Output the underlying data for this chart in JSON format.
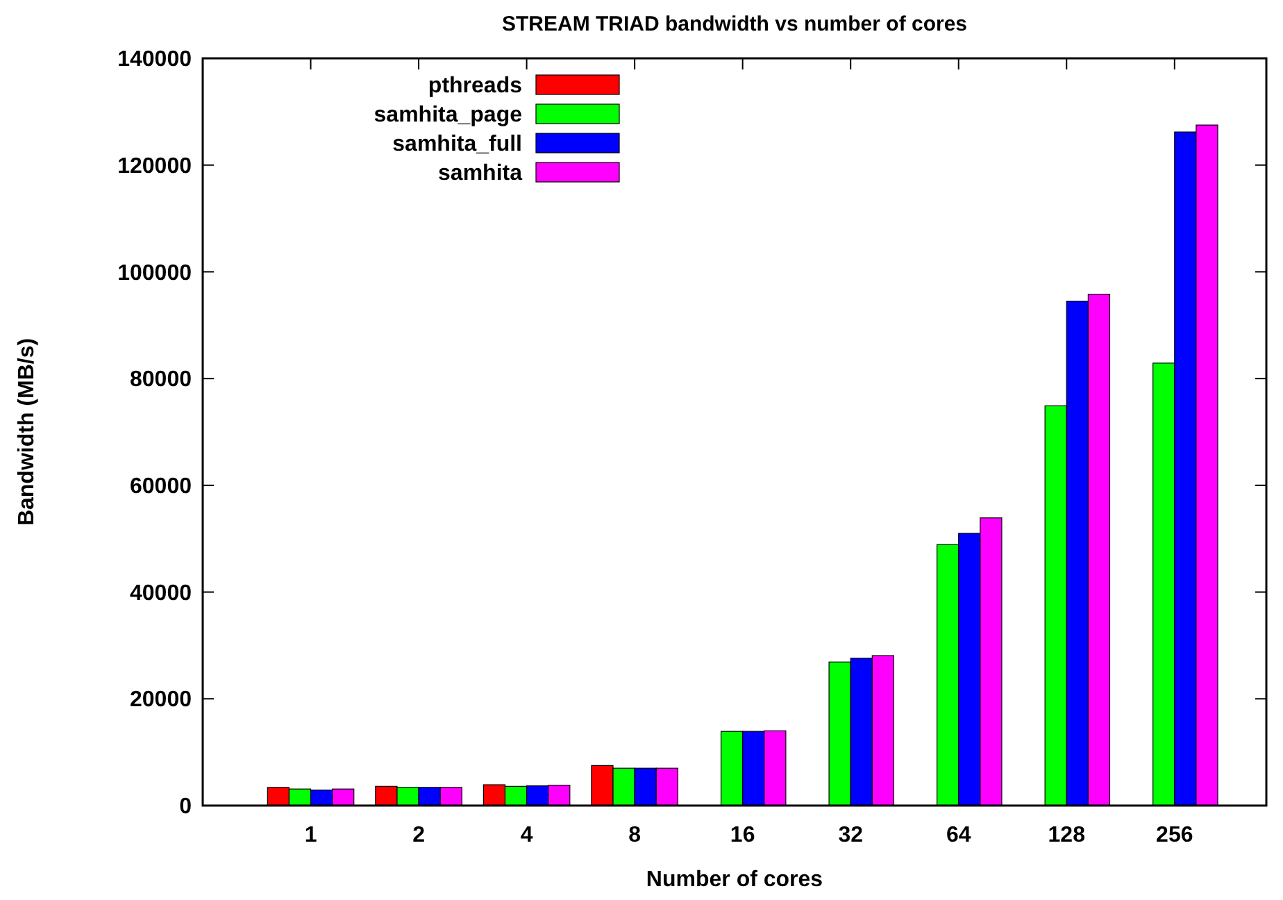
{
  "chart_data": {
    "type": "bar",
    "title": "STREAM TRIAD bandwidth vs number of cores",
    "xlabel": "Number of cores",
    "ylabel": "Bandwidth (MB/s)",
    "categories": [
      "1",
      "2",
      "4",
      "8",
      "16",
      "32",
      "64",
      "128",
      "256"
    ],
    "series": [
      {
        "name": "pthreads",
        "color": "#ff0000",
        "values": [
          3400,
          3600,
          3900,
          7500,
          null,
          null,
          null,
          null,
          null
        ]
      },
      {
        "name": "samhita_page",
        "color": "#00ff00",
        "values": [
          3100,
          3400,
          3600,
          7000,
          13900,
          26900,
          48900,
          74900,
          82900
        ]
      },
      {
        "name": "samhita_full",
        "color": "#0000ff",
        "values": [
          2900,
          3400,
          3700,
          7000,
          13900,
          27600,
          51000,
          94500,
          126200
        ]
      },
      {
        "name": "samhita",
        "color": "#ff00ff",
        "values": [
          3100,
          3400,
          3800,
          7000,
          14000,
          28100,
          53900,
          95800,
          127500
        ]
      }
    ],
    "ylim": [
      0,
      140000
    ],
    "yticks": [
      0,
      20000,
      40000,
      60000,
      80000,
      100000,
      120000,
      140000
    ],
    "grid": false,
    "legend": "top left"
  }
}
